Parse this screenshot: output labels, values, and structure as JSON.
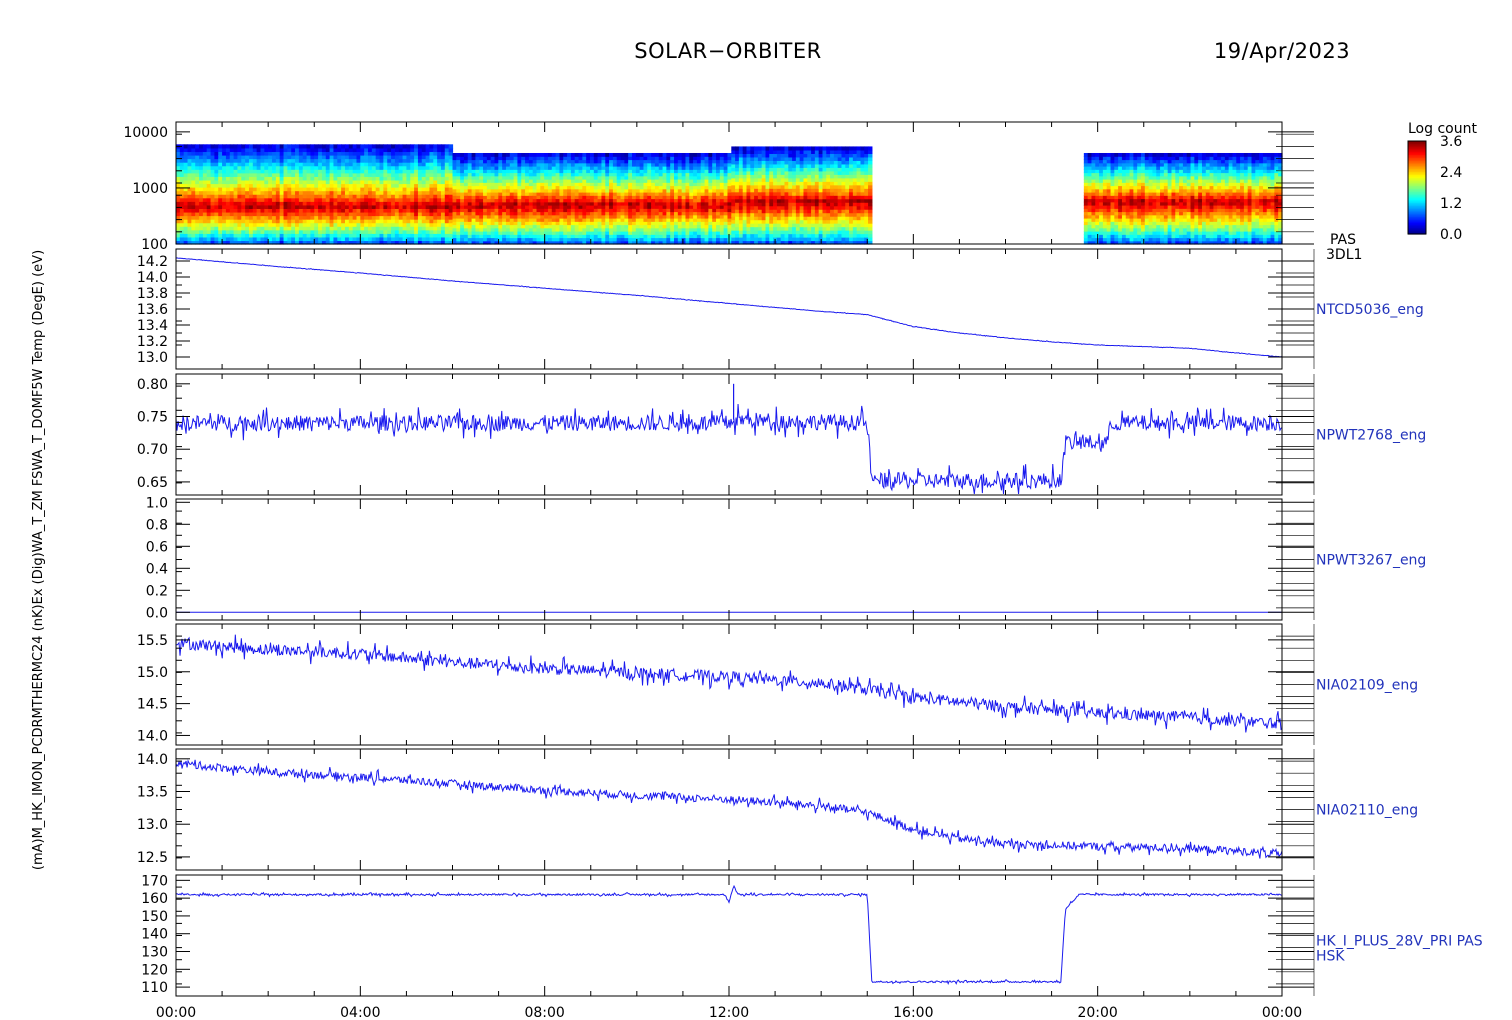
{
  "header": {
    "title": "SOLAR−ORBITER",
    "date": "19/Apr/2023"
  },
  "yaxis_title": "(mA)M_HK_IMON_PCDRMTHERMC24 (nK)Ex (Dig)WA_T_ZM FSWA_T_DOMF5W Temp (DegE) (eV)",
  "chart_data": {
    "type": "line",
    "x_axis": {
      "ticks": [
        "00:00",
        "04:00",
        "08:00",
        "12:00",
        "16:00",
        "20:00",
        "00:00"
      ],
      "range_hours": [
        0,
        24
      ]
    },
    "panels": [
      {
        "type": "heatmap",
        "label": "PAS",
        "label2": "3DL1",
        "ylabel": "(eV)",
        "yscale": "log",
        "ylim": [
          100,
          15000
        ],
        "yticks": [
          "10000",
          "1000",
          "100"
        ],
        "ytick_values": [
          10000,
          1000,
          100
        ],
        "colorbar": {
          "title": "Log count",
          "ticks": [
            "3.6",
            "2.4",
            "1.2",
            "0.0"
          ],
          "range": [
            0.0,
            3.6
          ]
        },
        "segments": [
          {
            "start_h": 0.0,
            "end_h": 6.0,
            "emin": 100,
            "emax": 6000,
            "peak_e": 500
          },
          {
            "start_h": 6.0,
            "end_h": 12.05,
            "emin": 100,
            "emax": 4200,
            "peak_e": 520
          },
          {
            "start_h": 12.05,
            "end_h": 15.1,
            "emin": 100,
            "emax": 5500,
            "peak_e": 600
          },
          {
            "start_h": 19.7,
            "end_h": 24.0,
            "emin": 100,
            "emax": 4200,
            "peak_e": 600
          }
        ]
      },
      {
        "label": "NTCD5036_eng",
        "ylim": [
          12.85,
          14.35
        ],
        "yticks": [
          "14.2",
          "14.0",
          "13.8",
          "13.6",
          "13.4",
          "13.2",
          "13.0"
        ],
        "ytick_values": [
          14.2,
          14.0,
          13.8,
          13.6,
          13.4,
          13.2,
          13.0
        ],
        "x": [
          0,
          2,
          4,
          6,
          8,
          10,
          12,
          14,
          15,
          16,
          17,
          18,
          19,
          20,
          21,
          22,
          23,
          24
        ],
        "y": [
          14.24,
          14.14,
          14.05,
          13.95,
          13.86,
          13.77,
          13.67,
          13.57,
          13.53,
          13.38,
          13.3,
          13.24,
          13.19,
          13.15,
          13.13,
          13.11,
          13.05,
          13.0
        ],
        "noise": 0.003
      },
      {
        "label": "NPWT2768_eng",
        "ylim": [
          0.63,
          0.815
        ],
        "yticks": [
          "0.80",
          "0.75",
          "0.70",
          "0.65"
        ],
        "ytick_values": [
          0.8,
          0.75,
          0.7,
          0.65
        ],
        "x": [
          0,
          12.0,
          12.1,
          15.0,
          15.1,
          19.2,
          19.3,
          20.2,
          20.3,
          24
        ],
        "y": [
          0.74,
          0.74,
          0.745,
          0.74,
          0.652,
          0.652,
          0.71,
          0.71,
          0.74,
          0.74
        ],
        "noise": 0.012,
        "spikes": [
          {
            "x": 12.1,
            "y": 0.8
          }
        ]
      },
      {
        "label": "NPWT3267_eng",
        "ylim": [
          -0.07,
          1.03
        ],
        "yticks": [
          "1.0",
          "0.8",
          "0.6",
          "0.4",
          "0.2",
          "0.0"
        ],
        "ytick_values": [
          1.0,
          0.8,
          0.6,
          0.4,
          0.2,
          0.0
        ],
        "x": [
          0,
          24
        ],
        "y": [
          0.0,
          0.0
        ],
        "noise": 0.0
      },
      {
        "label": "NIA02109_eng",
        "ylim": [
          13.85,
          15.75
        ],
        "yticks": [
          "15.5",
          "15.0",
          "14.5",
          "14.0"
        ],
        "ytick_values": [
          15.5,
          15.0,
          14.5,
          14.0
        ],
        "x": [
          0,
          2,
          4,
          6,
          8,
          10,
          12,
          14,
          15,
          16,
          18,
          20,
          22,
          24
        ],
        "y": [
          15.45,
          15.35,
          15.28,
          15.15,
          15.05,
          14.98,
          14.92,
          14.82,
          14.72,
          14.6,
          14.45,
          14.35,
          14.28,
          14.18
        ],
        "noise": 0.09
      },
      {
        "label": "NIA02110_eng",
        "ylim": [
          12.3,
          14.15
        ],
        "yticks": [
          "14.0",
          "13.5",
          "13.0",
          "12.5"
        ],
        "ytick_values": [
          14.0,
          13.5,
          13.0,
          12.5
        ],
        "x": [
          0,
          2,
          4,
          6,
          8,
          10,
          12,
          14,
          15,
          16,
          17,
          18,
          20,
          22,
          24
        ],
        "y": [
          13.93,
          13.8,
          13.72,
          13.62,
          13.52,
          13.44,
          13.38,
          13.28,
          13.18,
          12.92,
          12.78,
          12.7,
          12.66,
          12.63,
          12.55
        ],
        "noise": 0.06
      },
      {
        "label": "HK_I_PLUS_28V_PRI PAS",
        "label2": "HSK",
        "ylim": [
          105,
          173
        ],
        "yticks": [
          "170",
          "160",
          "150",
          "140",
          "130",
          "120",
          "110"
        ],
        "ytick_values": [
          170,
          160,
          150,
          140,
          130,
          120,
          110
        ],
        "x": [
          0,
          11.9,
          12.0,
          12.1,
          12.2,
          15.0,
          15.1,
          19.2,
          19.3,
          19.6,
          24
        ],
        "y": [
          162,
          162,
          158,
          167,
          162,
          162,
          113,
          113,
          154,
          162,
          162
        ],
        "noise": 0.5
      }
    ]
  }
}
